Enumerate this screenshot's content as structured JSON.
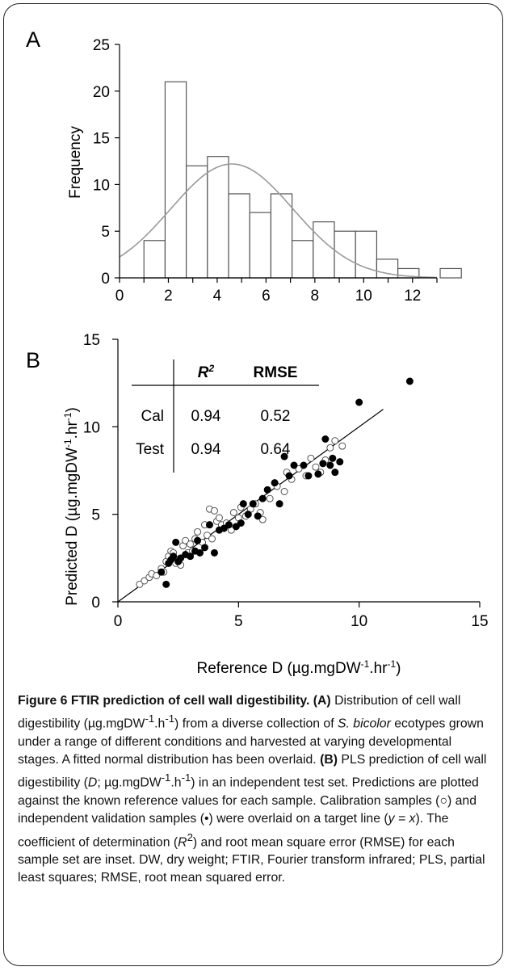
{
  "chart_data": [
    {
      "type": "bar",
      "panel_label": "A",
      "ylabel": "Frequency",
      "xlim": [
        0,
        13
      ],
      "ylim": [
        0,
        25
      ],
      "x_ticks": [
        "0",
        "2",
        "4",
        "6",
        "8",
        "10",
        "12"
      ],
      "y_ticks": [
        "0",
        "5",
        "10",
        "15",
        "20",
        "25"
      ],
      "bin_width": 1,
      "bins": [
        {
          "x0": 1,
          "count": 4
        },
        {
          "x0": 2,
          "count": 21
        },
        {
          "x0": 3,
          "count": 12
        },
        {
          "x0": 4,
          "count": 13
        },
        {
          "x0": 5,
          "count": 9
        },
        {
          "x0": 6,
          "count": 7
        },
        {
          "x0": 7,
          "count": 9
        },
        {
          "x0": 8,
          "count": 4
        },
        {
          "x0": 9,
          "count": 6
        },
        {
          "x0": 10,
          "count": 5
        },
        {
          "x0": 11,
          "count": 5
        },
        {
          "x0": 12,
          "count": 2
        },
        {
          "x0": 13,
          "count": 1
        },
        {
          "x0": 14,
          "count": 0
        },
        {
          "x0": 15,
          "count": 1
        }
      ],
      "fitted_curve": {
        "type": "normal",
        "mean": 4.6,
        "sd": 2.5,
        "peak": 12.2,
        "color": "#9a9a9a"
      }
    },
    {
      "type": "scatter",
      "panel_label": "B",
      "xlabel_parts": [
        "Reference D (µg.mgDW",
        "-1",
        ".hr",
        "-1",
        ")"
      ],
      "ylabel_parts": [
        "Predicted D (µg.mgDW",
        "-1",
        ".hr",
        "-1",
        ")"
      ],
      "xlim": [
        0,
        15
      ],
      "ylim": [
        0,
        15
      ],
      "x_ticks": [
        "0",
        "5",
        "10",
        "15"
      ],
      "y_ticks": [
        "0",
        "5",
        "10",
        "15"
      ],
      "target_line": [
        [
          0,
          0
        ],
        [
          11,
          11
        ]
      ],
      "series": [
        {
          "name": "Calibration",
          "marker": "open-circle",
          "points": [
            [
              0.9,
              1.0
            ],
            [
              1.1,
              1.2
            ],
            [
              1.3,
              1.4
            ],
            [
              1.4,
              1.6
            ],
            [
              1.6,
              1.5
            ],
            [
              1.8,
              1.9
            ],
            [
              1.9,
              1.7
            ],
            [
              2.0,
              2.3
            ],
            [
              2.1,
              2.6
            ],
            [
              2.2,
              2.9
            ],
            [
              2.3,
              2.8
            ],
            [
              2.4,
              2.2
            ],
            [
              2.5,
              2.4
            ],
            [
              2.6,
              2.1
            ],
            [
              2.7,
              3.2
            ],
            [
              2.8,
              3.5
            ],
            [
              2.9,
              2.8
            ],
            [
              3.0,
              3.3
            ],
            [
              3.1,
              2.9
            ],
            [
              3.2,
              3.6
            ],
            [
              3.3,
              4.0
            ],
            [
              3.5,
              3.4
            ],
            [
              3.6,
              4.4
            ],
            [
              3.7,
              3.8
            ],
            [
              3.8,
              5.3
            ],
            [
              3.9,
              3.6
            ],
            [
              4.0,
              5.2
            ],
            [
              4.1,
              4.6
            ],
            [
              4.2,
              4.8
            ],
            [
              4.3,
              4.4
            ],
            [
              4.5,
              4.5
            ],
            [
              4.7,
              4.1
            ],
            [
              4.8,
              5.1
            ],
            [
              5.0,
              4.8
            ],
            [
              5.1,
              5.4
            ],
            [
              5.3,
              4.9
            ],
            [
              5.5,
              5.3
            ],
            [
              5.7,
              5.6
            ],
            [
              5.9,
              5.1
            ],
            [
              6.0,
              4.7
            ],
            [
              6.3,
              5.9
            ],
            [
              6.6,
              6.6
            ],
            [
              6.9,
              6.3
            ],
            [
              7.0,
              7.4
            ],
            [
              7.2,
              7.0
            ],
            [
              7.5,
              7.6
            ],
            [
              7.8,
              7.2
            ],
            [
              8.0,
              8.2
            ],
            [
              8.2,
              7.7
            ],
            [
              8.4,
              7.4
            ],
            [
              8.6,
              8.1
            ],
            [
              8.8,
              8.8
            ],
            [
              9.0,
              9.2
            ],
            [
              9.3,
              8.9
            ]
          ]
        },
        {
          "name": "Test",
          "marker": "filled-circle",
          "points": [
            [
              1.8,
              1.7
            ],
            [
              2.0,
              1.0
            ],
            [
              2.1,
              2.2
            ],
            [
              2.2,
              2.4
            ],
            [
              2.3,
              2.6
            ],
            [
              2.4,
              3.4
            ],
            [
              2.5,
              2.3
            ],
            [
              2.6,
              2.5
            ],
            [
              2.8,
              2.7
            ],
            [
              3.0,
              2.6
            ],
            [
              3.2,
              2.9
            ],
            [
              3.3,
              3.5
            ],
            [
              3.4,
              2.8
            ],
            [
              3.6,
              3.1
            ],
            [
              3.8,
              4.4
            ],
            [
              4.0,
              2.8
            ],
            [
              4.2,
              4.1
            ],
            [
              4.4,
              4.2
            ],
            [
              4.6,
              4.4
            ],
            [
              4.9,
              4.3
            ],
            [
              5.1,
              4.5
            ],
            [
              5.2,
              5.6
            ],
            [
              5.4,
              5.0
            ],
            [
              5.6,
              5.6
            ],
            [
              5.8,
              4.9
            ],
            [
              6.0,
              5.9
            ],
            [
              6.2,
              6.4
            ],
            [
              6.5,
              6.8
            ],
            [
              6.7,
              5.6
            ],
            [
              6.9,
              8.3
            ],
            [
              7.1,
              7.2
            ],
            [
              7.3,
              7.8
            ],
            [
              7.7,
              7.8
            ],
            [
              7.9,
              7.2
            ],
            [
              8.3,
              7.3
            ],
            [
              8.5,
              7.9
            ],
            [
              8.6,
              9.3
            ],
            [
              8.8,
              7.8
            ],
            [
              8.9,
              8.2
            ],
            [
              9.0,
              7.4
            ],
            [
              9.2,
              8.0
            ],
            [
              10.0,
              11.4
            ],
            [
              12.1,
              12.6
            ]
          ]
        }
      ],
      "inset_table": {
        "headers": [
          "",
          "R²",
          "RMSE"
        ],
        "rows": [
          {
            "label": "Cal",
            "r2": "0.94",
            "rmse": "0.52"
          },
          {
            "label": "Test",
            "r2": "0.94",
            "rmse": "0.64"
          }
        ]
      }
    }
  ],
  "caption": {
    "figure_label": "Figure 6",
    "title": "FTIR prediction of cell wall digestibility.",
    "panel_a_label": "(A)",
    "panel_a_text_1": "Distribution of cell wall digestibility (µg.mgDW",
    "panel_a_text_sup1": "-1",
    "panel_a_text_2": ".h",
    "panel_a_text_sup2": "-1",
    "panel_a_text_3": ") from a diverse collection of",
    "species": "S. bicolor",
    "panel_a_text_4": "ecotypes grown under a range of different conditions and harvested at varying developmental stages. A fitted normal distribution has been overlaid.",
    "panel_b_label": "(B)",
    "panel_b_text_1": "PLS prediction of cell wall digestibility (",
    "panel_b_d": "D",
    "panel_b_text_2": "; µg.mgDW",
    "panel_b_text_sup1": "-1",
    "panel_b_text_3": ".h",
    "panel_b_text_sup2": "-1",
    "panel_b_text_4": ") in an independent test set. Predictions are plotted against the known reference values for each sample. Calibration samples (○) and independent validation samples (•) were overlaid on a target line (",
    "target_eq": "y = x",
    "panel_b_text_5": "). The coefficient of determination (",
    "r2_symbol": "R",
    "r2_sup": "2",
    "panel_b_text_6": ") and root mean square error (RMSE) for each sample set are inset. DW, dry weight; FTIR, Fourier transform infrared; PLS, partial least squares; RMSE, root mean squared error."
  }
}
